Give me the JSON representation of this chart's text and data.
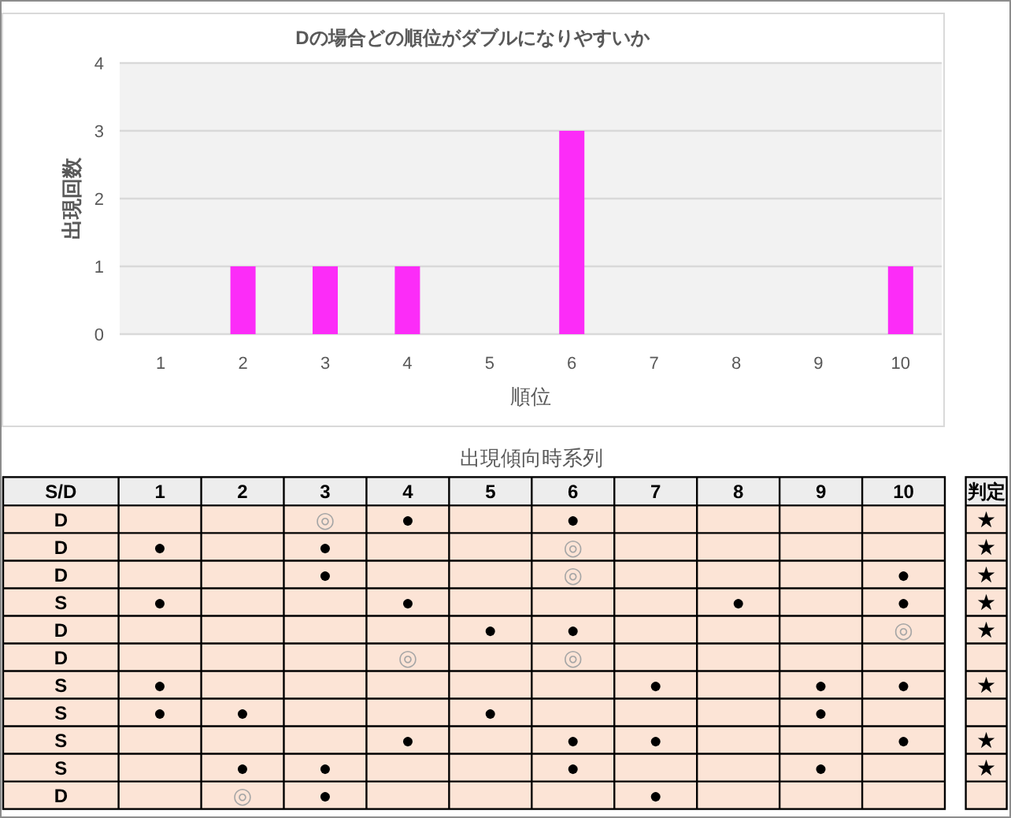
{
  "chart_data": [
    {
      "type": "bar",
      "title": "Dの場合どの順位がダブルになりやすいか",
      "xlabel": "順位",
      "ylabel": "出現回数",
      "categories": [
        "1",
        "2",
        "3",
        "4",
        "5",
        "6",
        "7",
        "8",
        "9",
        "10"
      ],
      "values": [
        0,
        1,
        1,
        1,
        0,
        3,
        0,
        0,
        0,
        1
      ],
      "color": "#fc2cf8",
      "ylim": [
        0,
        4
      ],
      "yticks": [
        0,
        1,
        2,
        3,
        4
      ],
      "grid": "y"
    },
    {
      "type": "heatmap",
      "title": "出現傾向時系列",
      "ylabel": "S/D",
      "y2label": "判定",
      "color": "#fce4d6",
      "categories": [
        "1",
        "2",
        "3",
        "4",
        "5",
        "6",
        "7",
        "8",
        "9",
        "10"
      ],
      "y_categories": [
        "D",
        "D",
        "D",
        "S",
        "D",
        "D",
        "S",
        "S",
        "S",
        "S",
        "D"
      ],
      "y2_categories": [
        "★",
        "★",
        "★",
        "★",
        "★",
        null,
        "★",
        null,
        "★",
        "★",
        null
      ],
      "cells": [
        [
          null,
          null,
          null,
          null,
          null,
          null,
          null,
          null,
          null,
          null
        ],
        [
          null,
          null,
          null,
          null,
          null,
          null,
          null,
          null,
          null,
          null
        ],
        [
          null,
          null,
          null,
          null,
          null,
          null,
          null,
          null,
          null,
          null
        ],
        [
          null,
          null,
          null,
          null,
          null,
          null,
          null,
          null,
          null,
          null
        ],
        [
          null,
          null,
          null,
          null,
          null,
          null,
          null,
          null,
          null,
          null
        ],
        [
          null,
          null,
          null,
          null,
          null,
          null,
          null,
          null,
          null,
          null
        ],
        [
          null,
          null,
          null,
          null,
          null,
          null,
          null,
          null,
          null,
          null
        ],
        [
          null,
          null,
          null,
          null,
          null,
          null,
          null,
          null,
          null,
          null
        ],
        [
          null,
          null,
          null,
          null,
          null,
          null,
          null,
          null,
          null,
          null
        ],
        [
          null,
          null,
          null,
          null,
          null,
          null,
          null,
          null,
          null,
          null
        ],
        [
          null,
          null,
          null,
          null,
          null,
          null,
          null,
          null,
          null,
          null
        ]
      ],
      "cell_labels": [
        [
          null,
          null,
          "◎",
          "●",
          null,
          "●",
          null,
          null,
          null,
          null
        ],
        [
          "●",
          null,
          "●",
          null,
          null,
          "◎",
          null,
          null,
          null,
          null
        ],
        [
          null,
          null,
          "●",
          null,
          null,
          "◎",
          null,
          null,
          null,
          "●"
        ],
        [
          "●",
          null,
          null,
          "●",
          null,
          null,
          null,
          "●",
          null,
          "●"
        ],
        [
          null,
          null,
          null,
          null,
          "●",
          "●",
          null,
          null,
          null,
          "◎"
        ],
        [
          null,
          null,
          null,
          "◎",
          null,
          "◎",
          null,
          null,
          null,
          null
        ],
        [
          "●",
          null,
          null,
          null,
          null,
          null,
          "●",
          null,
          "●",
          "●"
        ],
        [
          "●",
          "●",
          null,
          null,
          "●",
          null,
          null,
          null,
          "●",
          null
        ],
        [
          null,
          null,
          null,
          "●",
          null,
          "●",
          "●",
          null,
          null,
          "●"
        ],
        [
          null,
          "●",
          "●",
          null,
          null,
          "●",
          null,
          null,
          "●",
          null
        ],
        [
          null,
          "◎",
          "●",
          null,
          null,
          null,
          "●",
          null,
          null,
          null
        ]
      ],
      "colors": [
        [
          null,
          null,
          "#a6a6a6",
          "#000000",
          null,
          "#000000",
          null,
          null,
          null,
          null
        ],
        [
          "#000000",
          null,
          "#000000",
          null,
          null,
          "#a6a6a6",
          null,
          null,
          null,
          null
        ],
        [
          null,
          null,
          "#000000",
          null,
          null,
          "#a6a6a6",
          null,
          null,
          null,
          "#000000"
        ],
        [
          "#000000",
          null,
          null,
          "#000000",
          null,
          null,
          null,
          "#000000",
          null,
          "#000000"
        ],
        [
          null,
          null,
          null,
          null,
          "#000000",
          "#000000",
          null,
          null,
          null,
          "#a6a6a6"
        ],
        [
          null,
          null,
          null,
          "#a6a6a6",
          null,
          "#a6a6a6",
          null,
          null,
          null,
          null
        ],
        [
          "#000000",
          null,
          null,
          null,
          null,
          null,
          "#000000",
          null,
          "#000000",
          "#000000"
        ],
        [
          "#000000",
          "#000000",
          null,
          null,
          "#000000",
          null,
          null,
          null,
          "#000000",
          null
        ],
        [
          null,
          null,
          null,
          "#000000",
          null,
          "#000000",
          "#000000",
          null,
          null,
          "#000000"
        ],
        [
          null,
          "#000000",
          "#000000",
          null,
          null,
          "#000000",
          null,
          null,
          "#000000",
          null
        ],
        [
          null,
          "#a6a6a6",
          "#000000",
          null,
          null,
          null,
          "#000000",
          null,
          null,
          null
        ]
      ]
    }
  ]
}
